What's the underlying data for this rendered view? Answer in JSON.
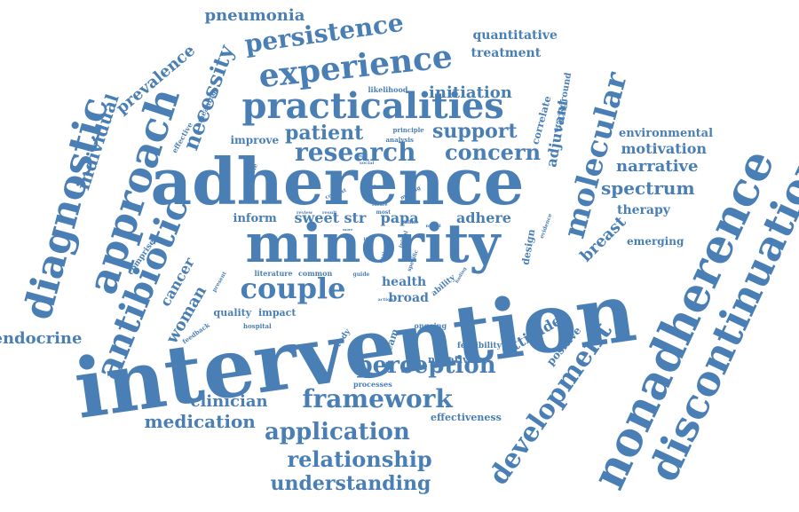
{
  "colors": {
    "word": "#4a7fb5",
    "background": "#ffffff"
  },
  "words": [
    {
      "text": "intervention",
      "weight": 100
    },
    {
      "text": "adherence",
      "weight": 90
    },
    {
      "text": "minority",
      "weight": 80
    },
    {
      "text": "nonadherence",
      "weight": 60
    },
    {
      "text": "discontinuation",
      "weight": 55
    },
    {
      "text": "development",
      "weight": 50
    },
    {
      "text": "molecular",
      "weight": 48
    },
    {
      "text": "diagnostic",
      "weight": 46
    },
    {
      "text": "approach",
      "weight": 46
    },
    {
      "text": "antibiotic",
      "weight": 45
    },
    {
      "text": "practicalities",
      "weight": 44
    },
    {
      "text": "experience",
      "weight": 42
    },
    {
      "text": "couple",
      "weight": 40
    },
    {
      "text": "perception",
      "weight": 36
    },
    {
      "text": "framework",
      "weight": 36
    },
    {
      "text": "persistence",
      "weight": 34
    },
    {
      "text": "application",
      "weight": 34
    },
    {
      "text": "research",
      "weight": 32
    },
    {
      "text": "concern",
      "weight": 30
    },
    {
      "text": "necessity",
      "weight": 30
    },
    {
      "text": "individual",
      "weight": 28
    },
    {
      "text": "relationship",
      "weight": 28
    },
    {
      "text": "understanding",
      "weight": 28
    },
    {
      "text": "patient",
      "weight": 26
    },
    {
      "text": "support",
      "weight": 26
    },
    {
      "text": "spectrum",
      "weight": 22
    },
    {
      "text": "narrative",
      "weight": 22
    },
    {
      "text": "motivation",
      "weight": 20
    },
    {
      "text": "initiation",
      "weight": 22
    },
    {
      "text": "woman",
      "weight": 22
    },
    {
      "text": "cancer",
      "weight": 22
    },
    {
      "text": "medication",
      "weight": 22
    },
    {
      "text": "clinician",
      "weight": 20
    },
    {
      "text": "endocrine",
      "weight": 20
    },
    {
      "text": "pneumonia",
      "weight": 20
    },
    {
      "text": "prevalence",
      "weight": 20
    },
    {
      "text": "attitude",
      "weight": 20
    },
    {
      "text": "breast",
      "weight": 20
    },
    {
      "text": "adjuvant",
      "weight": 18
    },
    {
      "text": "sweet",
      "weight": 20
    },
    {
      "text": "str",
      "weight": 20
    },
    {
      "text": "papa",
      "weight": 20
    },
    {
      "text": "adhere",
      "weight": 18
    },
    {
      "text": "health",
      "weight": 17
    },
    {
      "text": "broad",
      "weight": 17
    },
    {
      "text": "quantitative",
      "weight": 17
    },
    {
      "text": "treatment",
      "weight": 17
    },
    {
      "text": "environmental",
      "weight": 15
    },
    {
      "text": "therapy",
      "weight": 16
    },
    {
      "text": "emerging",
      "weight": 14
    },
    {
      "text": "inform",
      "weight": 14
    },
    {
      "text": "improve",
      "weight": 13
    },
    {
      "text": "quality",
      "weight": 12
    },
    {
      "text": "impact",
      "weight": 12
    },
    {
      "text": "positive",
      "weight": 12
    },
    {
      "text": "negative",
      "weight": 12
    },
    {
      "text": "team",
      "weight": 12
    },
    {
      "text": "design",
      "weight": 12
    },
    {
      "text": "effectiveness",
      "weight": 12
    },
    {
      "text": "correlate",
      "weight": 12
    },
    {
      "text": "background",
      "weight": 11
    },
    {
      "text": "feasibility",
      "weight": 10
    },
    {
      "text": "study",
      "weight": 10
    },
    {
      "text": "comprise",
      "weight": 10
    },
    {
      "text": "literature",
      "weight": 10
    },
    {
      "text": "common",
      "weight": 10
    },
    {
      "text": "ability",
      "weight": 10
    },
    {
      "text": "ongoing",
      "weight": 10
    },
    {
      "text": "processes",
      "weight": 10
    },
    {
      "text": "effective",
      "weight": 9
    },
    {
      "text": "meaning",
      "weight": 9
    },
    {
      "text": "likelihood",
      "weight": 9
    },
    {
      "text": "principle",
      "weight": 8
    },
    {
      "text": "analysis",
      "weight": 8
    },
    {
      "text": "feedback",
      "weight": 8
    },
    {
      "text": "hospital",
      "weight": 8
    },
    {
      "text": "unstable",
      "weight": 8
    },
    {
      "text": "context",
      "weight": 8
    },
    {
      "text": "choice",
      "weight": 8
    },
    {
      "text": "making",
      "weight": 8
    },
    {
      "text": "evidence",
      "weight": 8
    },
    {
      "text": "guide",
      "weight": 8
    },
    {
      "text": "action",
      "weight": 7
    },
    {
      "text": "level",
      "weight": 7
    },
    {
      "text": "initial",
      "weight": 7
    },
    {
      "text": "specific",
      "weight": 7
    },
    {
      "text": "finding",
      "weight": 7
    },
    {
      "text": "present",
      "weight": 7
    },
    {
      "text": "review",
      "weight": 7
    },
    {
      "text": "result",
      "weight": 7
    },
    {
      "text": "most",
      "weight": 7
    },
    {
      "text": "make",
      "weight": 7
    },
    {
      "text": "model",
      "weight": 6
    },
    {
      "text": "logic",
      "weight": 6
    },
    {
      "text": "social",
      "weight": 6
    },
    {
      "text": "future",
      "weight": 6
    },
    {
      "text": "life",
      "weight": 6
    },
    {
      "text": "way",
      "weight": 5
    },
    {
      "text": "more",
      "weight": 5
    }
  ]
}
